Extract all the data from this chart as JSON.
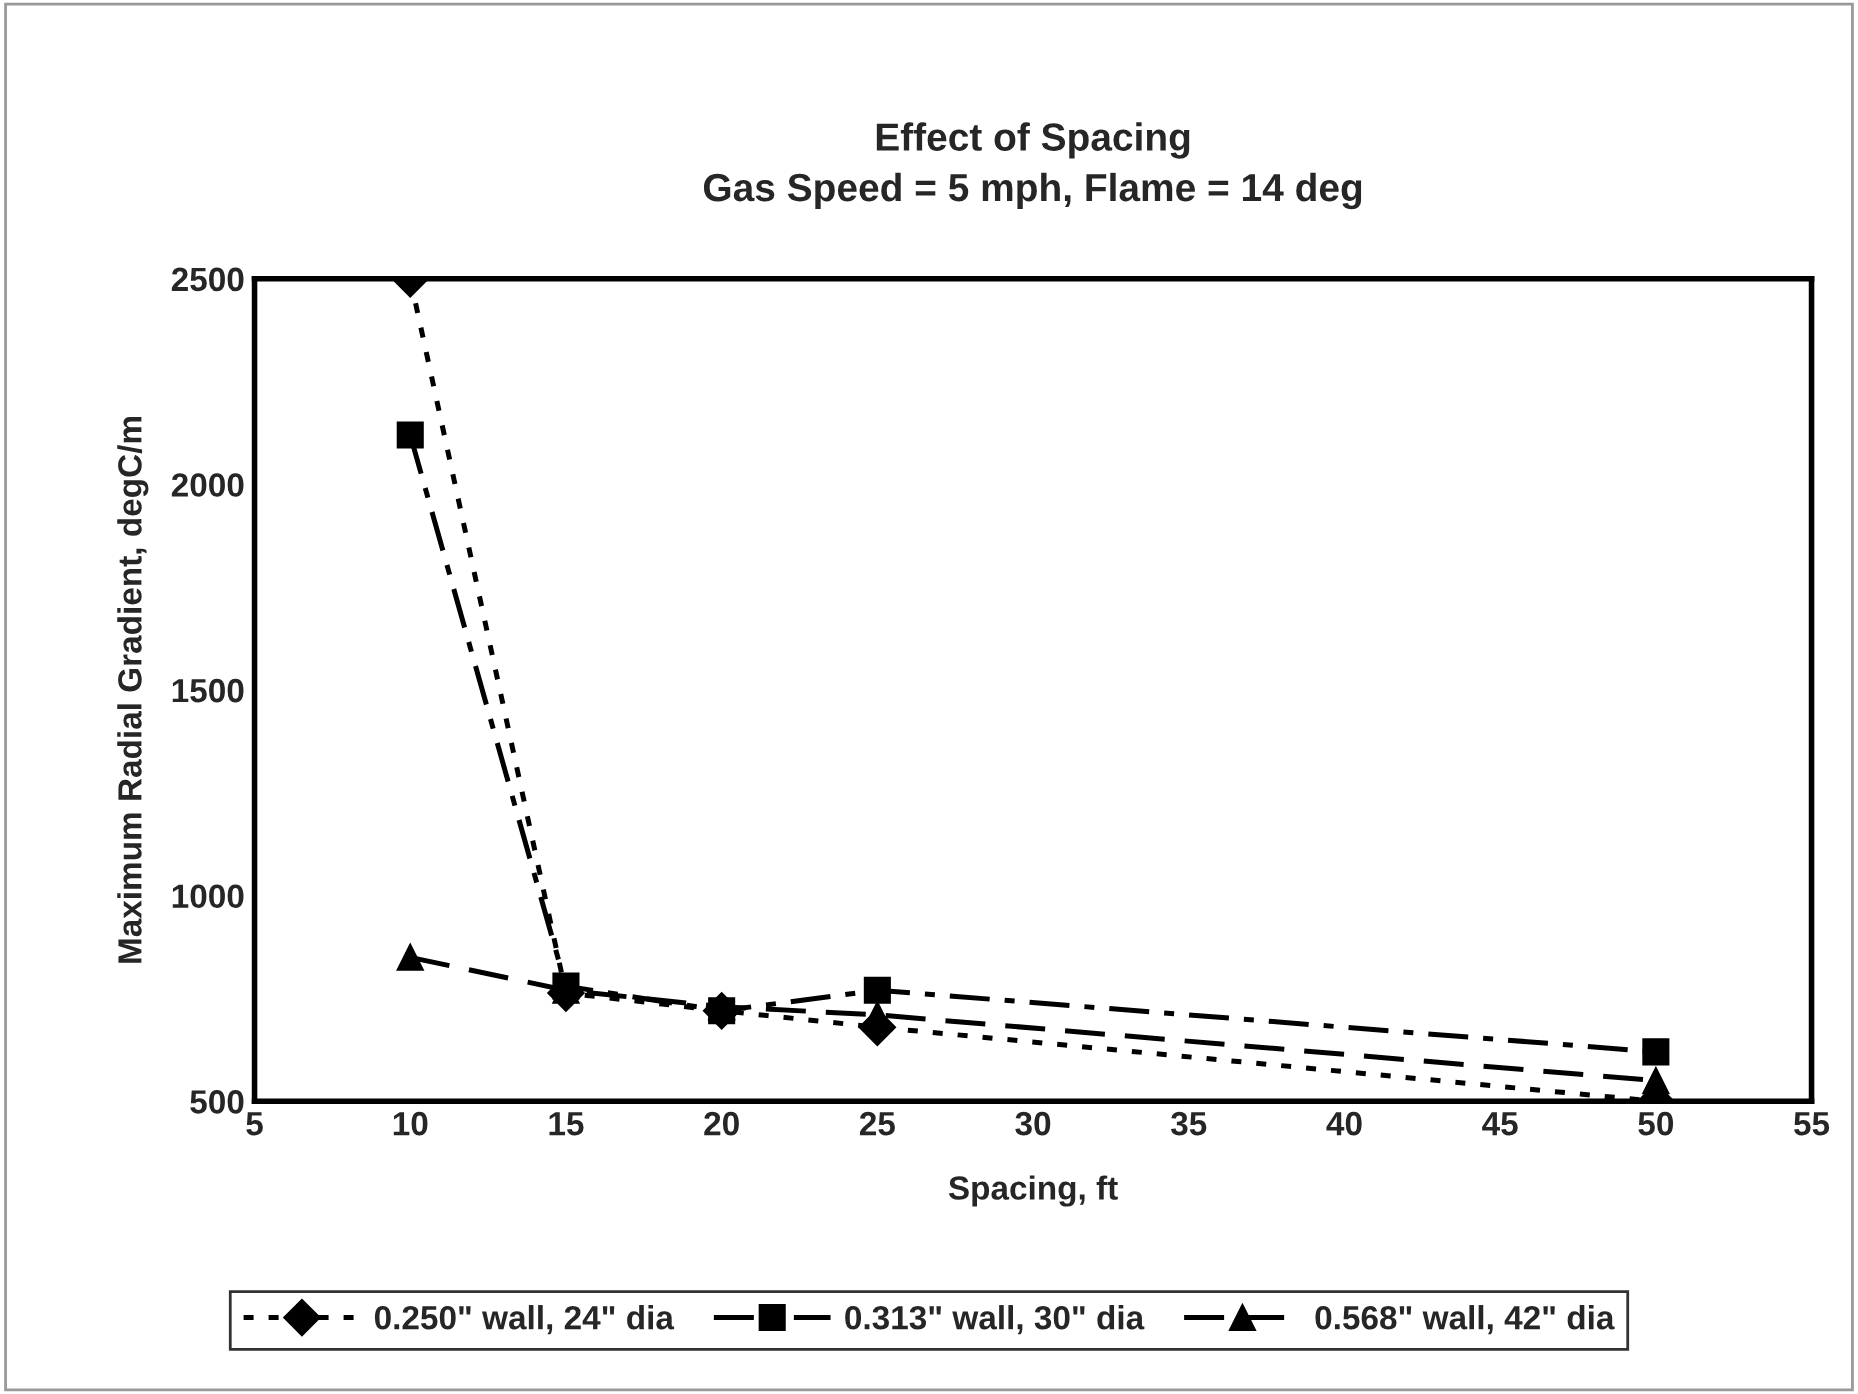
{
  "chart_data": {
    "type": "line",
    "title": "Effect of Spacing\nGas Speed = 5 mph, Flame = 14 deg",
    "xlabel": "Spacing, ft",
    "ylabel": "Maximum Radial Gradient, degC/m",
    "x": [
      10,
      15,
      20,
      25,
      50
    ],
    "series": [
      {
        "name": "0.250\" wall, 24\" dia",
        "color": "#000000",
        "values": [
          2500,
          763,
          720,
          680,
          500
        ],
        "marker": "diamond",
        "line_style": "dotted"
      },
      {
        "name": "0.313\" wall, 30\" dia",
        "color": "#000000",
        "values": [
          2120,
          780,
          720,
          770,
          620
        ],
        "marker": "square",
        "line_style": "dashdot"
      },
      {
        "name": "0.568\" wall, 42\" dia",
        "color": "#000000",
        "values": [
          850,
          770,
          730,
          710,
          550
        ],
        "marker": "triangle",
        "line_style": "dashed"
      }
    ],
    "xlim": [
      5,
      55
    ],
    "xticks": [
      5,
      10,
      15,
      20,
      25,
      30,
      35,
      40,
      45,
      50,
      55
    ],
    "ylim": [
      500,
      2500
    ],
    "yticks": [
      500,
      1000,
      1500,
      2000,
      2500
    ],
    "grid": false,
    "legend": "bottom"
  }
}
